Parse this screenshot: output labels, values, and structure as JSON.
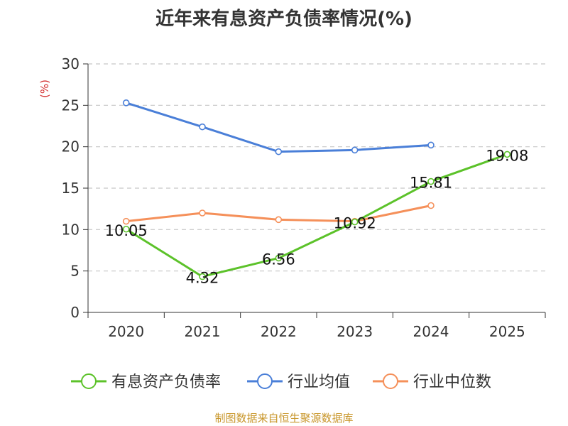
{
  "chart_data": {
    "type": "line",
    "title": "近年来有息资产负债率情况(%)",
    "ylabel": "(%)",
    "xlabel": "",
    "categories": [
      "2020",
      "2021",
      "2022",
      "2023",
      "2024",
      "2025"
    ],
    "yticks": [
      "0",
      "5",
      "10",
      "15",
      "20",
      "25",
      "30"
    ],
    "ylim": [
      0,
      30
    ],
    "grid": true,
    "legend_position": "bottom",
    "series": [
      {
        "name": "有息资产负债率",
        "color": "#5cc22a",
        "values": [
          10.05,
          4.32,
          6.56,
          10.92,
          15.81,
          19.08
        ],
        "labels": [
          "10.05",
          "4.32",
          "6.56",
          "10.92",
          "15.81",
          "19.08"
        ]
      },
      {
        "name": "行业均值",
        "color": "#4a7fd8",
        "values": [
          25.3,
          22.4,
          19.4,
          19.6,
          20.2,
          null
        ]
      },
      {
        "name": "行业中位数",
        "color": "#f5905a",
        "values": [
          11.0,
          12.0,
          11.2,
          11.0,
          12.9,
          null
        ]
      }
    ],
    "source": "制图数据来自恒生聚源数据库"
  }
}
